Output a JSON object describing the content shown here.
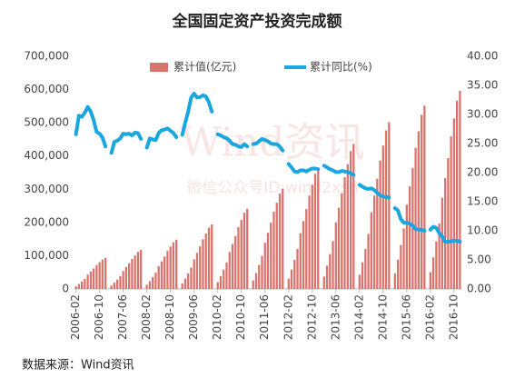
{
  "chart_data": {
    "type": "bar-line",
    "title": "全国固定资产投资完成额",
    "source": "数据来源：Wind资讯",
    "watermark": "Wind资讯",
    "watermark_sub": "微信公众号ID:wind2xsh",
    "categories": [
      "2006-02",
      null,
      null,
      null,
      null,
      null,
      null,
      null,
      "2006-10",
      null,
      null,
      null,
      null,
      null,
      null,
      null,
      "2007-06",
      null,
      null,
      null,
      null,
      null,
      null,
      null,
      "2008-02",
      null,
      null,
      null,
      null,
      null,
      null,
      null,
      "2008-10",
      null,
      null,
      null,
      null,
      null,
      null,
      null,
      "2009-06",
      null,
      null,
      null,
      null,
      null,
      null,
      null,
      "2010-02",
      null,
      null,
      null,
      null,
      null,
      null,
      null,
      "2010-10",
      null,
      null,
      null,
      null,
      null,
      null,
      null,
      "2011-06",
      null,
      null,
      null,
      null,
      null,
      null,
      null,
      "2012-02",
      null,
      null,
      null,
      null,
      null,
      null,
      null,
      "2012-10",
      null,
      null,
      null,
      null,
      null,
      null,
      null,
      "2013-06",
      null,
      null,
      null,
      null,
      null,
      null,
      null,
      "2014-02",
      null,
      null,
      null,
      null,
      null,
      null,
      null,
      "2014-10",
      null,
      null,
      null,
      null,
      null,
      null,
      null,
      "2015-06",
      null,
      null,
      null,
      null,
      null,
      null,
      null,
      "2016-02",
      null,
      null,
      null,
      null,
      null,
      null,
      null,
      "2016-10",
      null,
      null
    ],
    "series": [
      {
        "name": "累计值(亿元)",
        "color": "#d9736c",
        "axis": "y",
        "values": [
          7900,
          14900,
          22400,
          30800,
          43000,
          52300,
          61600,
          71900,
          80300,
          88700,
          93400,
          null,
          10000,
          18800,
          28200,
          38700,
          54000,
          65700,
          77500,
          90400,
          101000,
          111500,
          117400,
          null,
          12600,
          23700,
          35600,
          48900,
          68200,
          83000,
          97800,
          114100,
          127500,
          140800,
          148200,
          null,
          16500,
          31100,
          46600,
          64100,
          89300,
          108700,
          128100,
          149500,
          166900,
          184400,
          194100,
          null,
          20500,
          38600,
          57900,
          79700,
          111000,
          135200,
          159300,
          185900,
          207600,
          229300,
          241400,
          null,
          25700,
          48300,
          72500,
          99600,
          138900,
          169100,
          199300,
          232500,
          259600,
          286800,
          301900,
          null,
          31000,
          58400,
          87600,
          120400,
          167800,
          204300,
          240800,
          280900,
          313700,
          346600,
          364800,
          null,
          37100,
          69800,
          104800,
          144000,
          200800,
          244400,
          288100,
          336100,
          375400,
          414700,
          436500,
          null,
          42700,
          80300,
          120500,
          165700,
          230900,
          281100,
          331300,
          386500,
          431700,
          476900,
          502000,
          null,
          46900,
          88300,
          132400,
          182000,
          253700,
          308900,
          364100,
          424700,
          474400,
          524000,
          551600,
          null,
          50700,
          95400,
          143200,
          196800,
          274400,
          334000,
          393700,
          459300,
          513000,
          566700,
          596500
        ]
      },
      {
        "name": "累计同比(%)",
        "color": "#1aa6de",
        "axis": "y2",
        "values": [
          26.6,
          29.8,
          29.6,
          30.3,
          31.3,
          30.5,
          29.0,
          27.0,
          26.7,
          26.0,
          24.5,
          null,
          23.4,
          25.3,
          25.5,
          25.9,
          26.7,
          26.6,
          26.7,
          26.4,
          26.9,
          26.8,
          25.8,
          null,
          24.3,
          25.9,
          25.7,
          25.6,
          26.8,
          27.3,
          27.4,
          27.6,
          27.2,
          26.8,
          26.1,
          null,
          26.5,
          28.6,
          30.5,
          32.9,
          33.6,
          32.9,
          33.0,
          33.3,
          33.1,
          32.1,
          30.5,
          null,
          26.6,
          26.4,
          26.1,
          25.9,
          25.5,
          24.9,
          24.8,
          24.5,
          24.4,
          24.9,
          24.5,
          null,
          24.9,
          25.0,
          25.4,
          25.8,
          25.6,
          25.4,
          25.0,
          24.9,
          24.9,
          24.5,
          23.8,
          null,
          21.5,
          20.9,
          20.2,
          20.1,
          20.4,
          20.4,
          20.2,
          20.5,
          20.7,
          20.7,
          20.6,
          null,
          21.2,
          20.9,
          20.6,
          20.4,
          20.1,
          20.1,
          20.3,
          20.2,
          20.1,
          19.9,
          19.6,
          null,
          17.9,
          17.6,
          17.3,
          17.2,
          17.3,
          17.0,
          16.5,
          16.1,
          15.9,
          15.8,
          15.7,
          null,
          13.9,
          13.5,
          12.0,
          11.4,
          11.4,
          11.2,
          10.9,
          10.3,
          10.2,
          10.2,
          10.0,
          null,
          10.2,
          10.7,
          10.5,
          9.6,
          9.0,
          8.1,
          8.1,
          8.2,
          8.3,
          8.3,
          8.1
        ]
      }
    ],
    "ylim": [
      0,
      700000
    ],
    "yticks": [
      0,
      {
        "value": 100000,
        "label": "100,000"
      },
      {
        "value": 200000,
        "label": "200,000"
      },
      {
        "value": 300000,
        "label": "300,000"
      },
      {
        "value": 400000,
        "label": "400,000"
      },
      {
        "value": 500000,
        "label": "500,000"
      },
      {
        "value": 600000,
        "label": "600,000"
      },
      {
        "value": 700000,
        "label": "700,000"
      }
    ],
    "y2lim": [
      0,
      40
    ],
    "y2ticks": [
      {
        "value": 0,
        "label": "0.00"
      },
      {
        "value": 5,
        "label": "5.00"
      },
      {
        "value": 10,
        "label": "10.00"
      },
      {
        "value": 15,
        "label": "15.00"
      },
      {
        "value": 20,
        "label": "20.00"
      },
      {
        "value": 25,
        "label": "25.00"
      },
      {
        "value": 30,
        "label": "30.00"
      },
      {
        "value": 35,
        "label": "35.00"
      },
      {
        "value": 40,
        "label": "40.00"
      }
    ],
    "grid": false,
    "legend": "top"
  }
}
